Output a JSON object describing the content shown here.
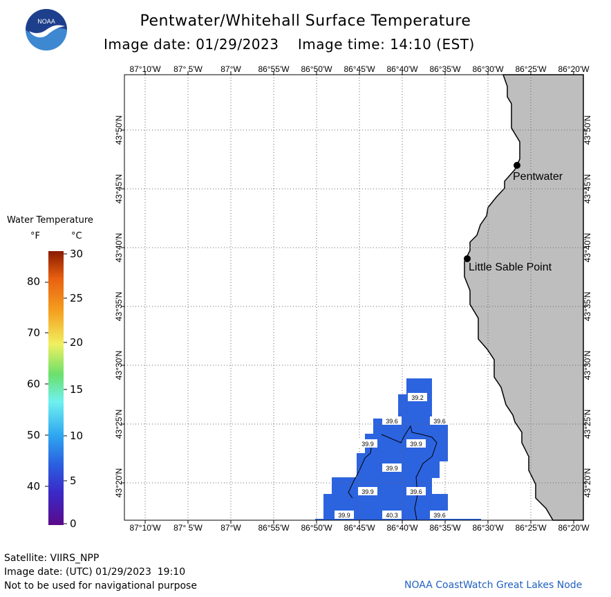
{
  "header": {
    "title": "Pentwater/Whitehall Surface Temperature",
    "image_date_label": "Image date: 01/29/2023",
    "image_time_label": "Image time: 14:10 (EST)"
  },
  "logo": {
    "text": "NOAA",
    "colors": {
      "top": "#1e3f8c",
      "bottom": "#3d88d0",
      "bird": "#ffffff"
    }
  },
  "map": {
    "lon_labels": [
      "87°10'W",
      "87° 5'W",
      "87°W",
      "86°55'W",
      "86°50'W",
      "86°45'W",
      "86°40'W",
      "86°35'W",
      "86°30'W",
      "86°25'W",
      "86°20'W"
    ],
    "lat_labels": [
      "43°50'N",
      "43°45'N",
      "43°40'N",
      "43°35'N",
      "43°30'N",
      "43°25'N",
      "43°20'N"
    ],
    "places": [
      {
        "name": "Pentwater",
        "icon": "location-dot-icon"
      },
      {
        "name": "Little Sable Point",
        "icon": "location-dot-icon"
      }
    ],
    "temperature_labels": [
      "39.2",
      "39.6",
      "39.6",
      "39.9",
      "39.9",
      "39.9",
      "39.9",
      "39.6",
      "39.9",
      "40.3",
      "39.6"
    ],
    "colors": {
      "land": "#bebebe",
      "water": "#ffffff",
      "cold_water": "#2c63df",
      "coast": "#000000",
      "grid": "#555555"
    }
  },
  "legend": {
    "title": "Water Temperature",
    "unit_f": "°F",
    "unit_c": "°C",
    "f_ticks": [
      "80",
      "70",
      "60",
      "50",
      "40"
    ],
    "c_ticks": [
      "30",
      "25",
      "20",
      "15",
      "10",
      "5",
      "0"
    ],
    "colors": [
      "#5a0a8a",
      "#2a3fd8",
      "#2f9ef0",
      "#6ef0f0",
      "#6be06b",
      "#f0f060",
      "#f5a020",
      "#e86010",
      "#8a1a00"
    ]
  },
  "footer": {
    "satellite": "Satellite: VIIRS_NPP",
    "image_date_utc": "Image date: (UTC) 01/29/2023  19:10",
    "disclaimer": "Not to be used for navigational purpose",
    "credit": "NOAA CoastWatch Great Lakes Node"
  }
}
